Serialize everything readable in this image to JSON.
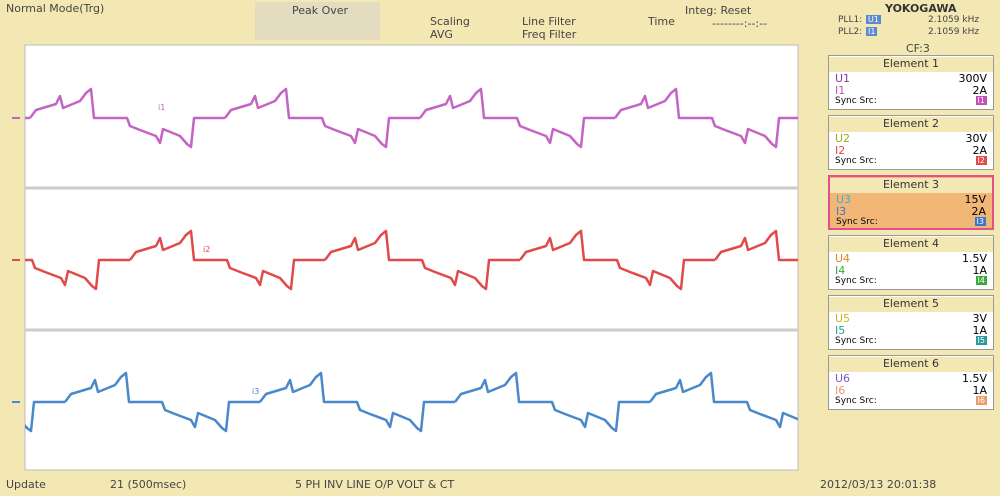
{
  "header": {
    "mode": "Normal Mode(Trg)",
    "peak_over": "Peak Over",
    "scaling": "Scaling",
    "avg": "AVG",
    "line_filter": "Line Filter",
    "freq_filter": "Freq Filter",
    "time_label": "Time",
    "integ": "Integ: Reset",
    "time_value": "--------:--:--",
    "brand": "YOKOGAWA",
    "pll": [
      {
        "label": "PLL1:",
        "source": "U1",
        "value": "2.1059 kHz"
      },
      {
        "label": "PLL2:",
        "source": "I1",
        "value": "2.1059 kHz"
      }
    ]
  },
  "waveform_labels": [
    "i1",
    "i2",
    "i3"
  ],
  "panel": {
    "cf": "CF:3",
    "elements": [
      {
        "title": "Element 1",
        "u_label": "U1",
        "u_range": "300V",
        "i_label": "I1",
        "i_range": "2A",
        "sync_label": "Sync Src:",
        "sync": "I1"
      },
      {
        "title": "Element 2",
        "u_label": "U2",
        "u_range": "30V",
        "i_label": "I2",
        "i_range": "2A",
        "sync_label": "Sync Src:",
        "sync": "I2"
      },
      {
        "title": "Element 3",
        "u_label": "U3",
        "u_range": "15V",
        "i_label": "I3",
        "i_range": "2A",
        "sync_label": "Sync Src:",
        "sync": "I3"
      },
      {
        "title": "Element 4",
        "u_label": "U4",
        "u_range": "1.5V",
        "i_label": "I4",
        "i_range": "1A",
        "sync_label": "Sync Src:",
        "sync": "I4"
      },
      {
        "title": "Element 5",
        "u_label": "U5",
        "u_range": "3V",
        "i_label": "I5",
        "i_range": "1A",
        "sync_label": "Sync Src:",
        "sync": "I5"
      },
      {
        "title": "Element 6",
        "u_label": "U6",
        "u_range": "1.5V",
        "i_label": "I6",
        "i_range": "1A",
        "sync_label": "Sync Src:",
        "sync": "I6"
      }
    ]
  },
  "footer": {
    "update_label": "Update",
    "update_value": "21 (500msec)",
    "description": "5 PH INV LINE O/P VOLT & CT",
    "datetime": "2012/03/13 20:01:38"
  }
}
